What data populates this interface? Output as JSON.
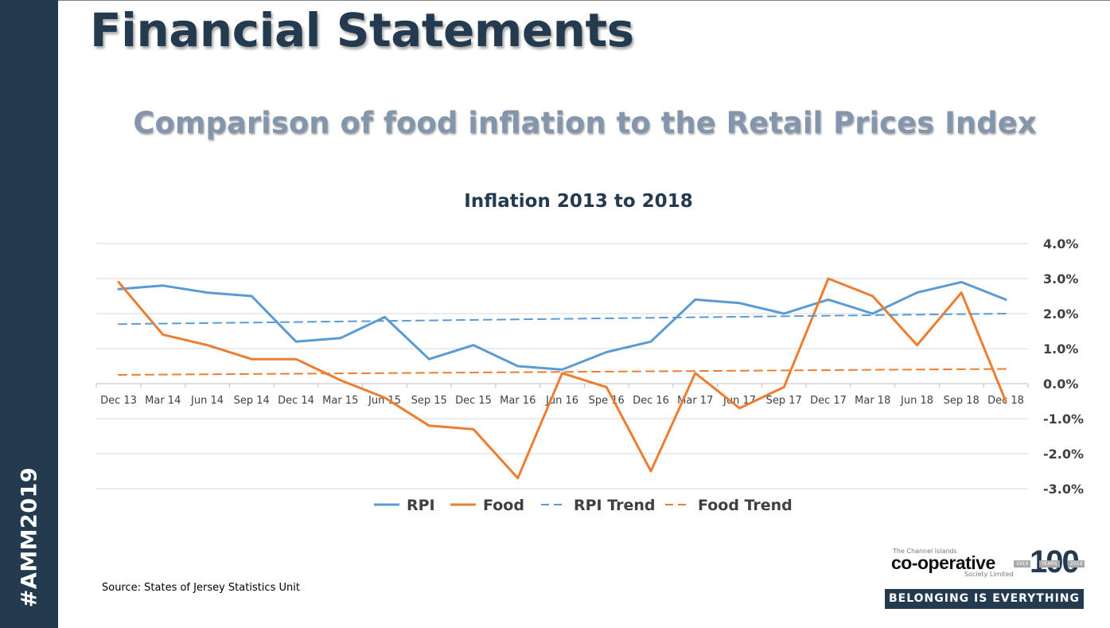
{
  "sidebar": {
    "hashtag": "#AMM2019"
  },
  "header": {
    "title": "Financial Statements",
    "subtitle": "Comparison of food inflation to the Retail Prices Index"
  },
  "source": "Source: States of Jersey Statistics Unit",
  "logo": {
    "top_text": "The Channel Islands",
    "brand": "co-operative",
    "sub_text": "Society Limited",
    "centenary": "100",
    "year_start": "1919",
    "years_label": "YEARS",
    "year_end": "2019",
    "tagline": "BELONGING IS EVERYTHING"
  },
  "colors": {
    "sidebar": "#243a4f",
    "rpi": "#5b9bd5",
    "food": "#ed7d31",
    "grid": "#d9d9d9",
    "axis_text": "#404040"
  },
  "chart_data": {
    "type": "line",
    "title": "Inflation 2013 to 2018",
    "categories": [
      "Dec 13",
      "Mar 14",
      "Jun 14",
      "Sep 14",
      "Dec 14",
      "Mar 15",
      "Jun 15",
      "Sep 15",
      "Dec 15",
      "Mar 16",
      "Jun 16",
      "Spe 16",
      "Dec 16",
      "Mar 17",
      "Jun 17",
      "Sep 17",
      "Dec 17",
      "Mar 18",
      "Jun 18",
      "Sep 18",
      "Dec 18"
    ],
    "ylim": [
      -3.0,
      4.0
    ],
    "yticks": [
      "4.0%",
      "3.0%",
      "2.0%",
      "1.0%",
      "0.0%",
      "-1.0%",
      "-2.0%",
      "-3.0%"
    ],
    "y_axis_position": "right",
    "grid": true,
    "legend_position": "bottom",
    "series": [
      {
        "name": "RPI",
        "style": "solid",
        "color": "#5b9bd5",
        "values": [
          2.7,
          2.8,
          2.6,
          2.5,
          1.2,
          1.3,
          1.9,
          0.7,
          1.1,
          0.5,
          0.4,
          0.9,
          1.2,
          2.4,
          2.3,
          2.0,
          2.4,
          2.0,
          2.6,
          2.9,
          2.4
        ]
      },
      {
        "name": "Food",
        "style": "solid",
        "color": "#ed7d31",
        "values": [
          2.9,
          1.4,
          1.1,
          0.7,
          0.7,
          0.1,
          -0.4,
          -1.2,
          -1.3,
          -2.7,
          0.3,
          -0.1,
          -2.5,
          0.3,
          -0.7,
          -0.1,
          3.0,
          2.5,
          1.1,
          2.6,
          -0.5
        ]
      },
      {
        "name": "RPI Trend",
        "style": "dashed",
        "color": "#5b9bd5",
        "trend_of": "RPI",
        "start": 1.7,
        "end": 2.0
      },
      {
        "name": "Food Trend",
        "style": "dashed",
        "color": "#ed7d31",
        "trend_of": "Food",
        "start": 0.25,
        "end": 0.42
      }
    ]
  }
}
